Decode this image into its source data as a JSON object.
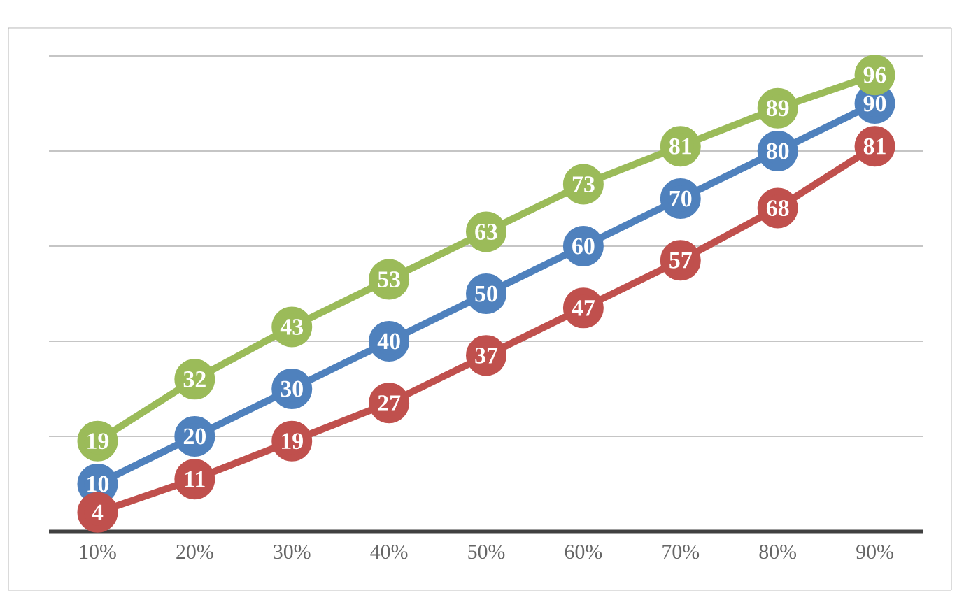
{
  "chart_data": {
    "type": "line",
    "categories": [
      "10%",
      "20%",
      "30%",
      "40%",
      "50%",
      "60%",
      "70%",
      "80%",
      "90%"
    ],
    "series": [
      {
        "color": "#4f81bd",
        "values": [
          10,
          20,
          30,
          40,
          50,
          60,
          70,
          80,
          90
        ]
      },
      {
        "color": "#9bbb59",
        "values": [
          19,
          32,
          43,
          53,
          63,
          73,
          81,
          89,
          96
        ]
      },
      {
        "color": "#c0504d",
        "values": [
          4,
          11,
          19,
          27,
          37,
          47,
          57,
          68,
          81
        ]
      }
    ],
    "ylim": [
      0,
      100
    ],
    "yticks": [
      {
        "value": 0,
        "label": null
      },
      {
        "value": 20,
        "label": null
      },
      {
        "value": 40,
        "label": null
      },
      {
        "value": 60,
        "label": null
      },
      {
        "value": 80,
        "label": null
      },
      {
        "value": 100,
        "label": null
      }
    ],
    "grid": "y",
    "tick_labels": "x",
    "marker": "circle",
    "line_style": "solid",
    "data_labels": true
  }
}
